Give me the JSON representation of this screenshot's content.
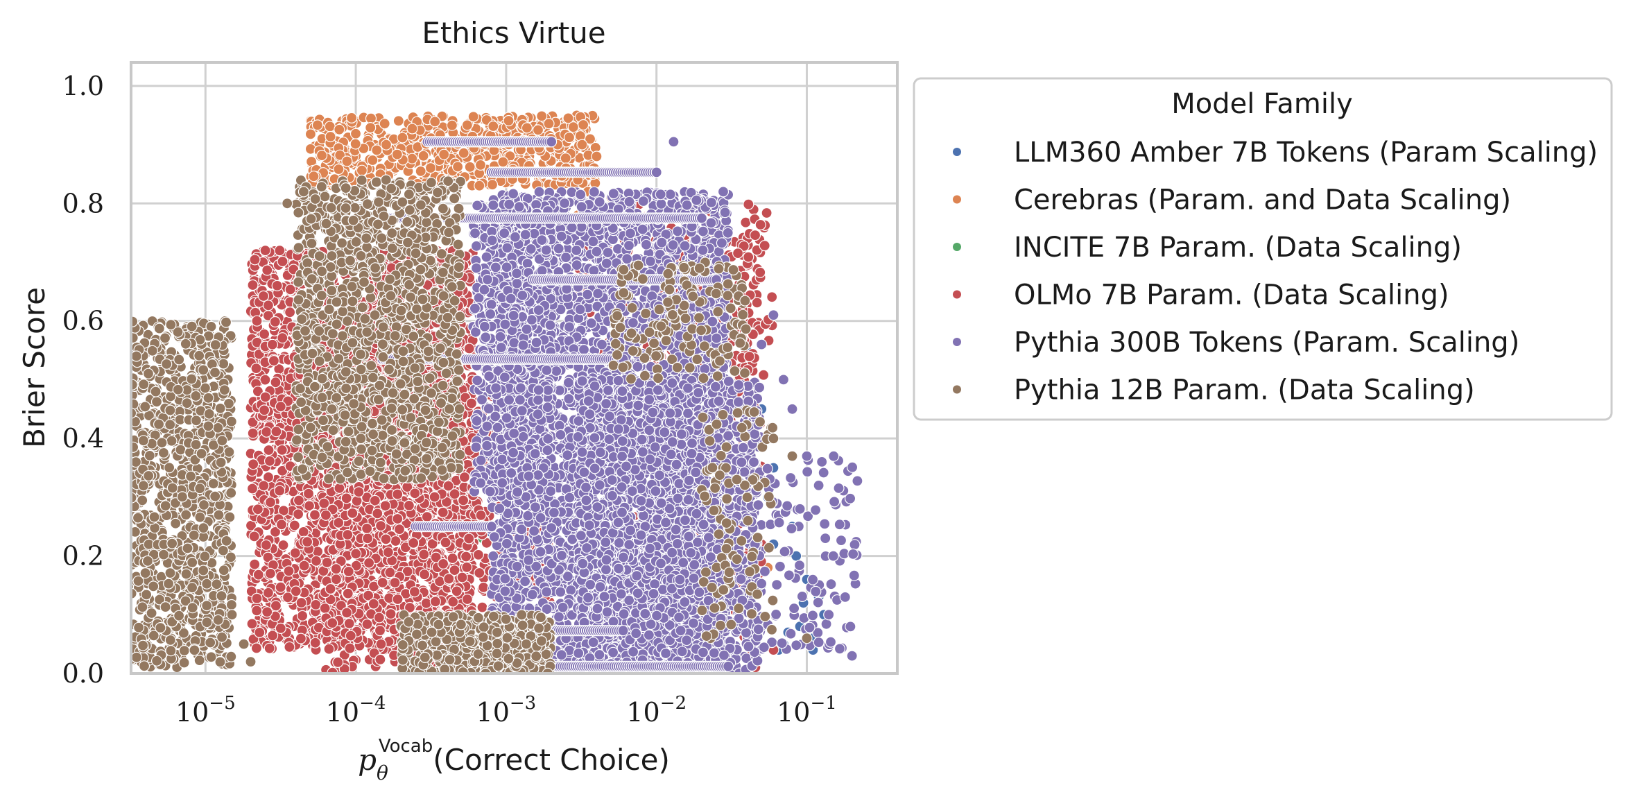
{
  "chart_data": {
    "type": "scatter",
    "title": "Ethics Virtue",
    "xlabel_math": "p",
    "xlabel_sub": "θ",
    "xlabel_sup": "Vocab",
    "xlabel_text": "(Correct Choice)",
    "ylabel": "Brier Score",
    "x_scale": "log",
    "xlim": [
      3.2e-06,
      0.4
    ],
    "ylim": [
      0,
      1.04
    ],
    "grid": true,
    "x_ticks": [
      {
        "value": 1e-05,
        "base": "10",
        "exp": "−5"
      },
      {
        "value": 0.0001,
        "base": "10",
        "exp": "−4"
      },
      {
        "value": 0.001,
        "base": "10",
        "exp": "−3"
      },
      {
        "value": 0.01,
        "base": "10",
        "exp": "−2"
      },
      {
        "value": 0.1,
        "base": "10",
        "exp": "−1"
      }
    ],
    "y_ticks": [
      {
        "value": 0.0,
        "label": "0.0"
      },
      {
        "value": 0.2,
        "label": "0.2"
      },
      {
        "value": 0.4,
        "label": "0.4"
      },
      {
        "value": 0.6,
        "label": "0.6"
      },
      {
        "value": 0.8,
        "label": "0.8"
      },
      {
        "value": 1.0,
        "label": "1.0"
      }
    ],
    "legend": {
      "title": "Model Family",
      "placement": "outside-right"
    },
    "series": [
      {
        "name": "LLM360 Amber 7B Tokens (Param Scaling)",
        "color": "#4c72b0",
        "points": [
          [
            0.04,
            0.55
          ],
          [
            0.05,
            0.45
          ],
          [
            0.06,
            0.35
          ],
          [
            0.08,
            0.25
          ],
          [
            0.1,
            0.16
          ],
          [
            0.12,
            0.13
          ],
          [
            0.13,
            0.1
          ],
          [
            0.09,
            0.08
          ],
          [
            0.11,
            0.06
          ],
          [
            0.07,
            0.05
          ],
          [
            0.03,
            0.64
          ],
          [
            0.025,
            0.6
          ],
          [
            0.045,
            0.4
          ],
          [
            0.055,
            0.3
          ],
          [
            0.085,
            0.2
          ],
          [
            0.095,
            0.12
          ],
          [
            0.075,
            0.07
          ],
          [
            0.065,
            0.04
          ],
          [
            0.11,
            0.04
          ],
          [
            0.0001,
            0.81
          ],
          [
            0.0008,
            0.24
          ],
          [
            0.0005,
            0.23
          ],
          [
            0.035,
            0.5
          ],
          [
            0.06,
            0.22
          ]
        ]
      },
      {
        "name": "Cerebras (Param. and Data Scaling)",
        "color": "#dd8452",
        "clusters": [
          {
            "x": [
              5e-05,
              0.004
            ],
            "y": [
              0.83,
              0.95
            ],
            "n": 650
          }
        ],
        "points": [
          [
            0.003,
            0.84
          ],
          [
            0.0035,
            0.82
          ],
          [
            0.004,
            0.8
          ],
          [
            0.003,
            0.78
          ],
          [
            0.005,
            0.81
          ],
          [
            0.0025,
            0.86
          ],
          [
            0.0045,
            0.77
          ],
          [
            0.0028,
            0.93
          ],
          [
            0.0032,
            0.9
          ],
          [
            0.004,
            0.88
          ],
          [
            0.0022,
            0.9
          ],
          [
            0.0038,
            0.85
          ],
          [
            0.05,
            0.22
          ],
          [
            0.055,
            0.18
          ]
        ]
      },
      {
        "name": "INCITE 7B Param. (Data Scaling)",
        "color": "#55a868",
        "points": [
          [
            0.012,
            0.73
          ],
          [
            0.015,
            0.65
          ],
          [
            0.02,
            0.6
          ],
          [
            0.03,
            0.56
          ],
          [
            0.0007,
            0.23
          ],
          [
            0.0006,
            0.24
          ],
          [
            0.025,
            0.5
          ],
          [
            0.045,
            0.35
          ],
          [
            0.05,
            0.15
          ]
        ]
      },
      {
        "name": "OLMo 7B Param. (Data Scaling)",
        "color": "#c44e52",
        "clusters": [
          {
            "x": [
              2e-05,
              0.0006
            ],
            "y": [
              0.04,
              0.72
            ],
            "n": 2600
          },
          {
            "x": [
              6e-05,
              0.002
            ],
            "y": [
              0.0,
              0.5
            ],
            "n": 900
          },
          {
            "x": [
              0.003,
              0.05
            ],
            "y": [
              0.0,
              0.75
            ],
            "n": 500
          },
          {
            "x": [
              0.005,
              0.06
            ],
            "y": [
              0.5,
              0.8
            ],
            "n": 180
          }
        ],
        "points": [
          [
            2.5e-05,
            0.72
          ],
          [
            3e-05,
            0.66
          ],
          [
            2.2e-05,
            0.6
          ],
          [
            4e-05,
            0.14
          ],
          [
            0.04,
            0.2
          ],
          [
            0.05,
            0.22
          ],
          [
            0.045,
            0.1
          ],
          [
            0.06,
            0.04
          ]
        ]
      },
      {
        "name": "Pythia 300B Tokens (Param. Scaling)",
        "color": "#8172b3",
        "clusters": [
          {
            "x": [
              0.0008,
              0.03
            ],
            "y": [
              0.0,
              0.82
            ],
            "n": 3800
          },
          {
            "x": [
              0.003,
              0.05
            ],
            "y": [
              0.0,
              0.5
            ],
            "n": 1600
          },
          {
            "x": [
              0.03,
              0.22
            ],
            "y": [
              0.03,
              0.37
            ],
            "n": 140
          },
          {
            "x": [
              0.0006,
              0.002
            ],
            "y": [
              0.3,
              0.8
            ],
            "n": 600
          }
        ],
        "bands": [
          {
            "x": [
              0.0003,
              0.002
            ],
            "y": 0.905
          },
          {
            "x": [
              0.0008,
              0.01
            ],
            "y": 0.853
          },
          {
            "x": [
              0.00012,
              0.02
            ],
            "y": 0.775
          },
          {
            "x": [
              0.0015,
              0.025
            ],
            "y": 0.67
          },
          {
            "x": [
              0.00015,
              0.006
            ],
            "y": 0.535
          },
          {
            "x": [
              0.00025,
              0.0008
            ],
            "y": 0.25
          },
          {
            "x": [
              0.0003,
              0.006
            ],
            "y": 0.073
          },
          {
            "x": [
              0.0004,
              0.03
            ],
            "y": 0.012
          }
        ],
        "points": [
          [
            0.013,
            0.905
          ],
          [
            0.06,
            0.61
          ],
          [
            0.05,
            0.56
          ],
          [
            0.07,
            0.5
          ],
          [
            0.08,
            0.45
          ],
          [
            0.1,
            0.37
          ],
          [
            0.12,
            0.32
          ],
          [
            0.15,
            0.2
          ],
          [
            0.18,
            0.13
          ],
          [
            0.2,
            0.03
          ],
          [
            0.14,
            0.1
          ],
          [
            0.09,
            0.28
          ]
        ]
      },
      {
        "name": "Pythia 12B Param. (Data Scaling)",
        "color": "#937860",
        "clusters": [
          {
            "x": [
              3.2e-06,
              1.5e-05
            ],
            "y": [
              0.01,
              0.6
            ],
            "n": 1000
          },
          {
            "x": [
              4e-05,
              0.0005
            ],
            "y": [
              0.33,
              0.84
            ],
            "n": 1300
          },
          {
            "x": [
              0.0002,
              0.002
            ],
            "y": [
              0.0,
              0.1
            ],
            "n": 500
          },
          {
            "x": [
              0.005,
              0.04
            ],
            "y": [
              0.5,
              0.7
            ],
            "n": 150
          },
          {
            "x": [
              0.02,
              0.06
            ],
            "y": [
              0.05,
              0.45
            ],
            "n": 90
          }
        ],
        "points": [
          [
            2e-05,
            0.02
          ],
          [
            1.8e-05,
            0.05
          ],
          [
            1.5e-05,
            0.1
          ],
          [
            4.5e-05,
            0.82
          ],
          [
            3.5e-05,
            0.8
          ],
          [
            0.06,
            0.4
          ],
          [
            0.08,
            0.37
          ],
          [
            0.1,
            0.06
          ]
        ]
      }
    ]
  }
}
